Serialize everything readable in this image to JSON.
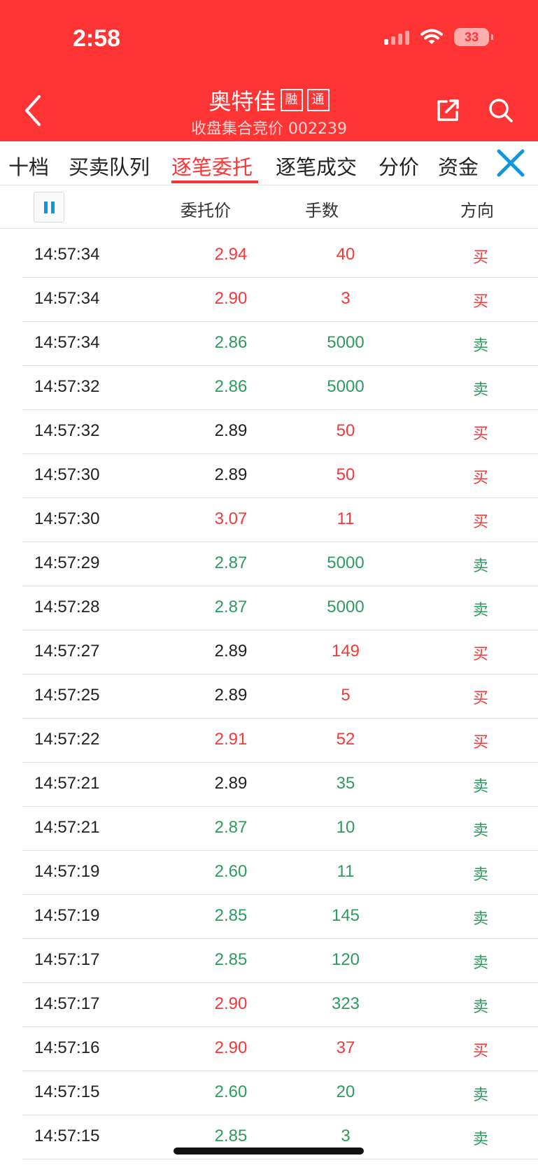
{
  "status_bar": {
    "time": "2:58",
    "battery": "33"
  },
  "header": {
    "title": "奥特佳",
    "badges": [
      "融",
      "通"
    ],
    "subtitle": "收盘集合竞价 002239"
  },
  "tabs": [
    "十档",
    "买卖队列",
    "逐笔委托",
    "逐笔成交",
    "分价",
    "资金"
  ],
  "active_tab": "逐笔委托",
  "columns": {
    "price": "委托价",
    "qty": "手数",
    "dir": "方向"
  },
  "colors": {
    "header_bg": "#ff3434",
    "up": "#f03a3a",
    "down": "#2e9b5f",
    "accent_blue": "#1296db"
  },
  "rows": [
    {
      "time": "14:57:34",
      "price": "2.94",
      "qty": "40",
      "dir": "买",
      "pc": "red",
      "qc": "red",
      "dc": "red"
    },
    {
      "time": "14:57:34",
      "price": "2.90",
      "qty": "3",
      "dir": "买",
      "pc": "red",
      "qc": "red",
      "dc": "red"
    },
    {
      "time": "14:57:34",
      "price": "2.86",
      "qty": "5000",
      "dir": "卖",
      "pc": "green",
      "qc": "green",
      "dc": "green"
    },
    {
      "time": "14:57:32",
      "price": "2.86",
      "qty": "5000",
      "dir": "卖",
      "pc": "green",
      "qc": "green",
      "dc": "green"
    },
    {
      "time": "14:57:32",
      "price": "2.89",
      "qty": "50",
      "dir": "买",
      "pc": "black",
      "qc": "red",
      "dc": "red"
    },
    {
      "time": "14:57:30",
      "price": "2.89",
      "qty": "50",
      "dir": "买",
      "pc": "black",
      "qc": "red",
      "dc": "red"
    },
    {
      "time": "14:57:30",
      "price": "3.07",
      "qty": "11",
      "dir": "买",
      "pc": "red",
      "qc": "red",
      "dc": "red"
    },
    {
      "time": "14:57:29",
      "price": "2.87",
      "qty": "5000",
      "dir": "卖",
      "pc": "green",
      "qc": "green",
      "dc": "green"
    },
    {
      "time": "14:57:28",
      "price": "2.87",
      "qty": "5000",
      "dir": "卖",
      "pc": "green",
      "qc": "green",
      "dc": "green"
    },
    {
      "time": "14:57:27",
      "price": "2.89",
      "qty": "149",
      "dir": "买",
      "pc": "black",
      "qc": "red",
      "dc": "red"
    },
    {
      "time": "14:57:25",
      "price": "2.89",
      "qty": "5",
      "dir": "买",
      "pc": "black",
      "qc": "red",
      "dc": "red"
    },
    {
      "time": "14:57:22",
      "price": "2.91",
      "qty": "52",
      "dir": "买",
      "pc": "red",
      "qc": "red",
      "dc": "red"
    },
    {
      "time": "14:57:21",
      "price": "2.89",
      "qty": "35",
      "dir": "卖",
      "pc": "black",
      "qc": "green",
      "dc": "green"
    },
    {
      "time": "14:57:21",
      "price": "2.87",
      "qty": "10",
      "dir": "卖",
      "pc": "green",
      "qc": "green",
      "dc": "green"
    },
    {
      "time": "14:57:19",
      "price": "2.60",
      "qty": "11",
      "dir": "卖",
      "pc": "green",
      "qc": "green",
      "dc": "green"
    },
    {
      "time": "14:57:19",
      "price": "2.85",
      "qty": "145",
      "dir": "卖",
      "pc": "green",
      "qc": "green",
      "dc": "green"
    },
    {
      "time": "14:57:17",
      "price": "2.85",
      "qty": "120",
      "dir": "卖",
      "pc": "green",
      "qc": "green",
      "dc": "green"
    },
    {
      "time": "14:57:17",
      "price": "2.90",
      "qty": "323",
      "dir": "卖",
      "pc": "red",
      "qc": "green",
      "dc": "green"
    },
    {
      "time": "14:57:16",
      "price": "2.90",
      "qty": "37",
      "dir": "买",
      "pc": "red",
      "qc": "red",
      "dc": "red"
    },
    {
      "time": "14:57:15",
      "price": "2.60",
      "qty": "20",
      "dir": "卖",
      "pc": "green",
      "qc": "green",
      "dc": "green"
    },
    {
      "time": "14:57:15",
      "price": "2.85",
      "qty": "3",
      "dir": "卖",
      "pc": "green",
      "qc": "green",
      "dc": "green"
    }
  ]
}
